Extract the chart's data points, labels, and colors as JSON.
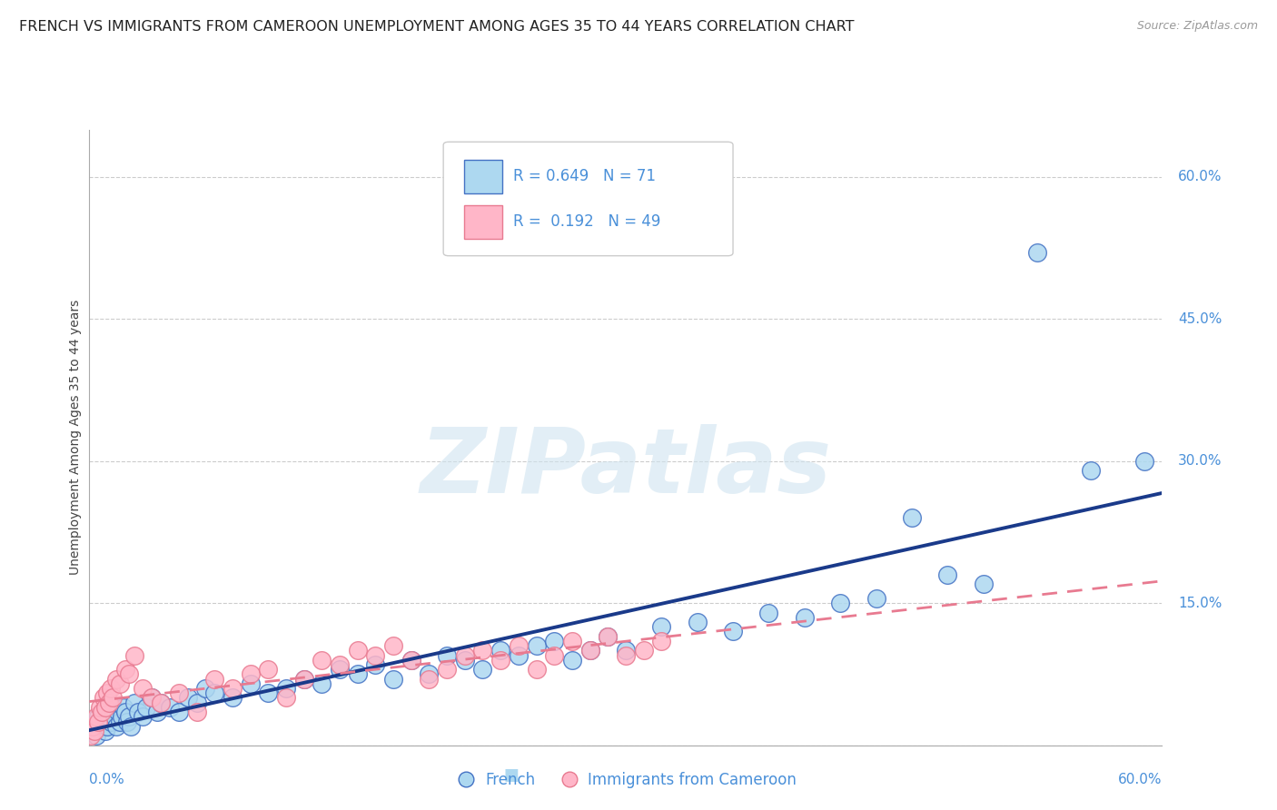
{
  "title": "FRENCH VS IMMIGRANTS FROM CAMEROON UNEMPLOYMENT AMONG AGES 35 TO 44 YEARS CORRELATION CHART",
  "source": "Source: ZipAtlas.com",
  "ylabel": "Unemployment Among Ages 35 to 44 years",
  "ytick_labels": [
    "0.0%",
    "15.0%",
    "30.0%",
    "45.0%",
    "60.0%"
  ],
  "ytick_values": [
    0.0,
    15.0,
    30.0,
    45.0,
    60.0
  ],
  "xtick_labels": [
    "0.0%",
    "60.0%"
  ],
  "xlim": [
    0.0,
    60.0
  ],
  "ylim": [
    0.0,
    65.0
  ],
  "watermark": "ZIPatlas",
  "french_r": "0.649",
  "french_n": "71",
  "cameroon_r": "0.192",
  "cameroon_n": "49",
  "french_scatter_x": [
    0.2,
    0.3,
    0.4,
    0.5,
    0.6,
    0.7,
    0.8,
    0.9,
    1.0,
    1.1,
    1.2,
    1.3,
    1.4,
    1.5,
    1.6,
    1.7,
    1.8,
    1.9,
    2.0,
    2.1,
    2.2,
    2.3,
    2.5,
    2.7,
    3.0,
    3.2,
    3.5,
    3.8,
    4.0,
    4.5,
    5.0,
    5.5,
    6.0,
    6.5,
    7.0,
    8.0,
    9.0,
    10.0,
    11.0,
    12.0,
    13.0,
    14.0,
    15.0,
    16.0,
    17.0,
    18.0,
    19.0,
    20.0,
    21.0,
    22.0,
    23.0,
    24.0,
    25.0,
    26.0,
    27.0,
    28.0,
    29.0,
    30.0,
    32.0,
    34.0,
    36.0,
    38.0,
    40.0,
    42.0,
    44.0,
    46.0,
    48.0,
    50.0,
    53.0,
    56.0,
    59.0
  ],
  "french_scatter_y": [
    1.5,
    2.0,
    1.0,
    3.0,
    2.5,
    2.0,
    3.5,
    1.5,
    2.0,
    3.0,
    2.5,
    4.0,
    3.0,
    2.0,
    3.5,
    2.5,
    3.0,
    4.0,
    3.5,
    2.5,
    3.0,
    2.0,
    4.5,
    3.5,
    3.0,
    4.0,
    5.0,
    3.5,
    4.5,
    4.0,
    3.5,
    5.0,
    4.5,
    6.0,
    5.5,
    5.0,
    6.5,
    5.5,
    6.0,
    7.0,
    6.5,
    8.0,
    7.5,
    8.5,
    7.0,
    9.0,
    7.5,
    9.5,
    9.0,
    8.0,
    10.0,
    9.5,
    10.5,
    11.0,
    9.0,
    10.0,
    11.5,
    10.0,
    12.5,
    13.0,
    12.0,
    14.0,
    13.5,
    15.0,
    15.5,
    24.0,
    18.0,
    17.0,
    52.0,
    29.0,
    30.0
  ],
  "cameroon_scatter_x": [
    0.1,
    0.2,
    0.3,
    0.4,
    0.5,
    0.6,
    0.7,
    0.8,
    0.9,
    1.0,
    1.1,
    1.2,
    1.3,
    1.5,
    1.7,
    2.0,
    2.2,
    2.5,
    3.0,
    3.5,
    4.0,
    5.0,
    6.0,
    7.0,
    8.0,
    9.0,
    10.0,
    11.0,
    12.0,
    13.0,
    14.0,
    15.0,
    16.0,
    17.0,
    18.0,
    19.0,
    20.0,
    21.0,
    22.0,
    23.0,
    24.0,
    25.0,
    26.0,
    27.0,
    28.0,
    29.0,
    30.0,
    31.0,
    32.0
  ],
  "cameroon_scatter_y": [
    1.0,
    2.0,
    1.5,
    3.0,
    2.5,
    4.0,
    3.5,
    5.0,
    4.0,
    5.5,
    4.5,
    6.0,
    5.0,
    7.0,
    6.5,
    8.0,
    7.5,
    9.5,
    6.0,
    5.0,
    4.5,
    5.5,
    3.5,
    7.0,
    6.0,
    7.5,
    8.0,
    5.0,
    7.0,
    9.0,
    8.5,
    10.0,
    9.5,
    10.5,
    9.0,
    7.0,
    8.0,
    9.5,
    10.0,
    9.0,
    10.5,
    8.0,
    9.5,
    11.0,
    10.0,
    11.5,
    9.5,
    10.0,
    11.0
  ],
  "french_color": "#add8f0",
  "french_edge_color": "#4472c4",
  "cameroon_color": "#ffb6c8",
  "cameroon_edge_color": "#e87a90",
  "french_line_color": "#1a3a8a",
  "cameroon_line_color": "#e87a90",
  "grid_color": "#cccccc",
  "background_color": "#ffffff",
  "title_fontsize": 11.5,
  "axis_label_fontsize": 10,
  "tick_fontsize": 11,
  "watermark_color": "#d0e4f0",
  "watermark_alpha": 0.6,
  "watermark_fontsize": 72
}
